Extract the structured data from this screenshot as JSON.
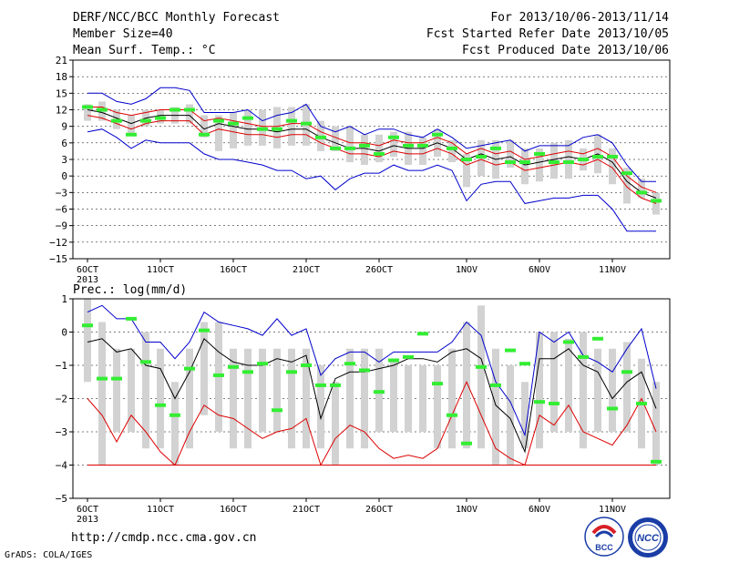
{
  "header": {
    "title": "DERF/NCC/BCC Monthly Forecast",
    "member_size": "Member Size=40",
    "variable": "Mean Surf. Temp.: °C",
    "period": "For 2013/10/06-2013/11/14",
    "start_date": "Fcst Started Refer Date 2013/10/05",
    "produced_date": "Fcst Produced Date 2013/10/06"
  },
  "footer": {
    "url": "http://cmdp.ncc.cma.gov.cn",
    "credit": "GrADS: COLA/IGES",
    "logo_bcc": "BCC",
    "logo_ncc": "NCC"
  },
  "colors": {
    "box": "#d2d2d2",
    "median": "#33ee33",
    "ensemble_mean": "#000000",
    "max_min": "#0000cc",
    "percentile": "#dd0000"
  },
  "chart_data": [
    {
      "type": "line",
      "variable": "Mean Surf. Temp.: °C",
      "ylim": [
        -15,
        21
      ],
      "yticks": [
        -15,
        -12,
        -9,
        -6,
        -3,
        0,
        3,
        6,
        9,
        12,
        15,
        18,
        21
      ],
      "x_day_index": [
        0,
        39
      ],
      "xtick_labels": [
        {
          "day": 0,
          "label": "6OCT",
          "sub": "2013"
        },
        {
          "day": 5,
          "label": "11OCT"
        },
        {
          "day": 10,
          "label": "16OCT"
        },
        {
          "day": 15,
          "label": "21OCT"
        },
        {
          "day": 20,
          "label": "26OCT"
        },
        {
          "day": 26,
          "label": "1NOV"
        },
        {
          "day": 31,
          "label": "6NOV"
        },
        {
          "day": 36,
          "label": "11NOV"
        }
      ],
      "grid": "dashed horizontal",
      "box_p10": [
        10,
        10,
        8.5,
        7.5,
        9,
        9.5,
        9.5,
        9.5,
        7,
        4.5,
        5,
        5.5,
        5.5,
        5,
        5.5,
        5.5,
        4.5,
        4.5,
        2.5,
        2,
        2.5,
        3.5,
        2,
        2,
        3.5,
        2.5,
        -2,
        0,
        -0.5,
        1.5,
        -1.5,
        -1,
        -0.5,
        -0.5,
        1,
        0.5,
        -1.5,
        -5,
        -4,
        -7
      ],
      "box_p90": [
        13,
        13.5,
        12,
        11,
        12,
        12,
        12.5,
        13,
        11,
        11,
        11.5,
        12,
        12,
        12.5,
        12.5,
        13,
        10,
        9,
        9,
        7.5,
        7.5,
        8,
        8,
        7,
        8.5,
        6.5,
        4,
        6.5,
        6.5,
        6.5,
        5,
        5,
        6,
        6.5,
        5,
        7.5,
        5,
        1.5,
        -0.5,
        -3
      ],
      "ens_max": [
        15,
        15,
        13.5,
        13,
        14,
        16,
        16,
        15.5,
        11.5,
        11.5,
        11.5,
        12,
        10,
        11,
        11.5,
        13,
        9,
        8,
        9,
        7.5,
        8.5,
        8.5,
        7.5,
        7,
        8.5,
        7,
        5,
        5.5,
        6,
        6.5,
        4.5,
        5.5,
        5.5,
        5.5,
        7,
        7.5,
        6,
        2,
        -1,
        -1
      ],
      "ens_min": [
        8,
        8.5,
        7,
        5,
        6.5,
        6,
        6,
        6,
        4,
        3,
        3,
        2.5,
        2,
        1,
        1,
        -0.5,
        0,
        -2.5,
        -0.5,
        0.5,
        0.5,
        2,
        1,
        1,
        2,
        1,
        -4.5,
        -1.5,
        -1,
        -1,
        -5,
        -4.5,
        -4,
        -4,
        -3.5,
        -3.5,
        -6,
        -10,
        -10,
        -10
      ],
      "ens_mean": [
        12,
        11.5,
        10.5,
        9.5,
        10.5,
        11,
        11,
        11,
        8.5,
        9.5,
        9,
        8.5,
        8.5,
        8,
        8.5,
        8.5,
        7,
        6,
        5,
        5,
        4.5,
        5.5,
        5,
        5,
        6,
        5,
        3,
        4,
        3,
        3.5,
        2,
        2.5,
        3,
        3.5,
        3,
        4,
        2.5,
        -1,
        -3,
        -4
      ],
      "pct_upper": [
        12.5,
        12.5,
        11.5,
        11,
        11.5,
        12,
        12,
        12,
        10,
        10.5,
        10,
        9.5,
        9,
        9,
        9.5,
        9.5,
        8,
        7,
        6,
        6,
        5.5,
        6.5,
        6,
        6,
        7,
        6,
        4,
        5,
        4,
        4.5,
        3,
        3.5,
        4,
        4.5,
        4,
        5,
        3.5,
        0,
        -2,
        -3
      ],
      "pct_lower": [
        11,
        10.5,
        9.5,
        8.5,
        9.5,
        10,
        10,
        10,
        7.5,
        8.5,
        8,
        7.5,
        7.5,
        7,
        7.5,
        7.5,
        6,
        5,
        4,
        4,
        3.5,
        4.5,
        4,
        4,
        5,
        4,
        2,
        3,
        2,
        2.5,
        1,
        1.5,
        2,
        2.5,
        2,
        3,
        1.5,
        -2,
        -4,
        -5
      ],
      "median": [
        12.5,
        12,
        10,
        7.5,
        10,
        10.5,
        12,
        12,
        7.5,
        10,
        9.5,
        10.5,
        8.5,
        8.5,
        10,
        9.5,
        7,
        5,
        5,
        5.5,
        4,
        7,
        5.5,
        5.5,
        7.5,
        5,
        3,
        3.5,
        5,
        2.5,
        2.5,
        4,
        2.5,
        2.5,
        3,
        3.5,
        3.5,
        0.5,
        -3,
        -4.5
      ]
    },
    {
      "type": "line",
      "variable": "Prec.: log(mm/d)",
      "ylim": [
        -5,
        1
      ],
      "yticks": [
        -5,
        -4,
        -3,
        -2,
        -1,
        0,
        1
      ],
      "x_day_index": [
        0,
        39
      ],
      "xtick_labels": [
        {
          "day": 0,
          "label": "6OCT",
          "sub": "2013"
        },
        {
          "day": 5,
          "label": "11OCT"
        },
        {
          "day": 10,
          "label": "16OCT"
        },
        {
          "day": 15,
          "label": "21OCT"
        },
        {
          "day": 20,
          "label": "26OCT"
        },
        {
          "day": 26,
          "label": "1NOV"
        },
        {
          "day": 31,
          "label": "6NOV"
        },
        {
          "day": 36,
          "label": "11NOV"
        }
      ],
      "grid": "dashed horizontal",
      "box_p10": [
        -1.5,
        -4,
        -3,
        -3,
        -3.5,
        -3.5,
        -4,
        -3.5,
        -2.5,
        -3,
        -3.5,
        -3.5,
        -3,
        -3,
        -3.5,
        -3.5,
        -3.5,
        -4,
        -3.5,
        -3.5,
        -3,
        -3,
        -3,
        -3,
        -3.5,
        -3.5,
        -3.5,
        -3.5,
        -4,
        -4,
        -3.5,
        -3.5,
        -3,
        -3,
        -3.5,
        -3,
        -3,
        -3,
        -3.5,
        -4
      ],
      "box_p90": [
        1,
        0.3,
        -0.5,
        -0.5,
        0,
        -0.5,
        -1.5,
        -0.5,
        0.3,
        0.3,
        -0.5,
        -0.5,
        -0.5,
        -0.5,
        -0.5,
        -0.5,
        -1,
        -1.5,
        -0.5,
        -0.5,
        -0.5,
        -0.8,
        -1,
        -1,
        -1,
        -0.5,
        0.3,
        0.8,
        -0.5,
        -1,
        -1.5,
        0,
        0,
        -0.2,
        0,
        -0.5,
        -0.5,
        -0.3,
        -0.8,
        -1.5
      ],
      "ens_max": [
        0.6,
        0.8,
        0.4,
        0.4,
        -0.3,
        -0.3,
        -0.8,
        -0.3,
        0.6,
        0.3,
        0.2,
        0.1,
        -0.1,
        0.4,
        -0.1,
        0.1,
        -1.3,
        -0.8,
        -0.6,
        -0.6,
        -0.9,
        -0.6,
        -0.6,
        -0.6,
        -0.6,
        -0.3,
        0.3,
        -0.1,
        -1.5,
        -2.1,
        -3.1,
        0,
        -0.3,
        0,
        -0.7,
        -0.9,
        -1.2,
        -0.5,
        0.1,
        -1.7
      ],
      "ens_min": [
        -4,
        -4,
        -4,
        -4,
        -4,
        -4,
        -4,
        -4,
        -4,
        -4,
        -4,
        -4,
        -4,
        -4,
        -4,
        -4,
        -4,
        -4,
        -4,
        -4,
        -4,
        -4,
        -4,
        -4,
        -4,
        -4,
        -4,
        -4,
        -4,
        -4,
        -4,
        -4,
        -4,
        -4,
        -4,
        -4,
        -4,
        -4,
        -4,
        -4
      ],
      "ens_mean": [
        -0.3,
        -0.2,
        -0.6,
        -0.5,
        -1,
        -1.1,
        -2,
        -1.2,
        -0.2,
        -0.6,
        -0.9,
        -1,
        -1,
        -0.8,
        -0.9,
        -0.7,
        -2.6,
        -1.4,
        -1.2,
        -1.2,
        -1.1,
        -1,
        -0.8,
        -0.8,
        -0.9,
        -0.6,
        -0.5,
        -0.8,
        -2.2,
        -2.6,
        -3.6,
        -0.8,
        -0.8,
        -0.5,
        -1,
        -1.2,
        -2,
        -1.5,
        -1.2,
        -2.3
      ],
      "pct_upper": [
        -2,
        -2.5,
        -3.3,
        -2.5,
        -3,
        -3.6,
        -4,
        -3,
        -2.2,
        -2.5,
        -2.6,
        -2.9,
        -3.2,
        -3,
        -2.9,
        -2.6,
        -4,
        -3.2,
        -2.8,
        -3,
        -3.5,
        -3.8,
        -3.7,
        -3.8,
        -3.5,
        -2.5,
        -1.5,
        -2.5,
        -3.5,
        -3.8,
        -4,
        -2.5,
        -2.8,
        -2.2,
        -3,
        -3.2,
        -3.4,
        -2.8,
        -2,
        -3
      ],
      "pct_lower": [
        -4,
        -4,
        -4,
        -4,
        -4,
        -4,
        -4,
        -4,
        -4,
        -4,
        -4,
        -4,
        -4,
        -4,
        -4,
        -4,
        -4,
        -4,
        -4,
        -4,
        -4,
        -4,
        -4,
        -4,
        -4,
        -4,
        -4,
        -4,
        -4,
        -4,
        -4,
        -4,
        -4,
        -4,
        -4,
        -4,
        -4,
        -4,
        -4,
        -4
      ],
      "median": [
        0.2,
        -1.4,
        -1.4,
        0.4,
        -0.9,
        -2.2,
        -2.5,
        -1.1,
        0.05,
        -1.3,
        -1.05,
        -1.2,
        -0.95,
        -2.35,
        -1.2,
        -1.0,
        -1.6,
        -1.6,
        -0.95,
        -1.15,
        -1.8,
        -0.85,
        -0.75,
        -0.05,
        -1.55,
        -2.5,
        -3.35,
        -1.05,
        -1.6,
        -0.55,
        -0.95,
        -2.1,
        -2.15,
        -0.3,
        -0.75,
        -0.2,
        -2.3,
        -1.2,
        -2.15,
        -3.9
      ]
    }
  ]
}
